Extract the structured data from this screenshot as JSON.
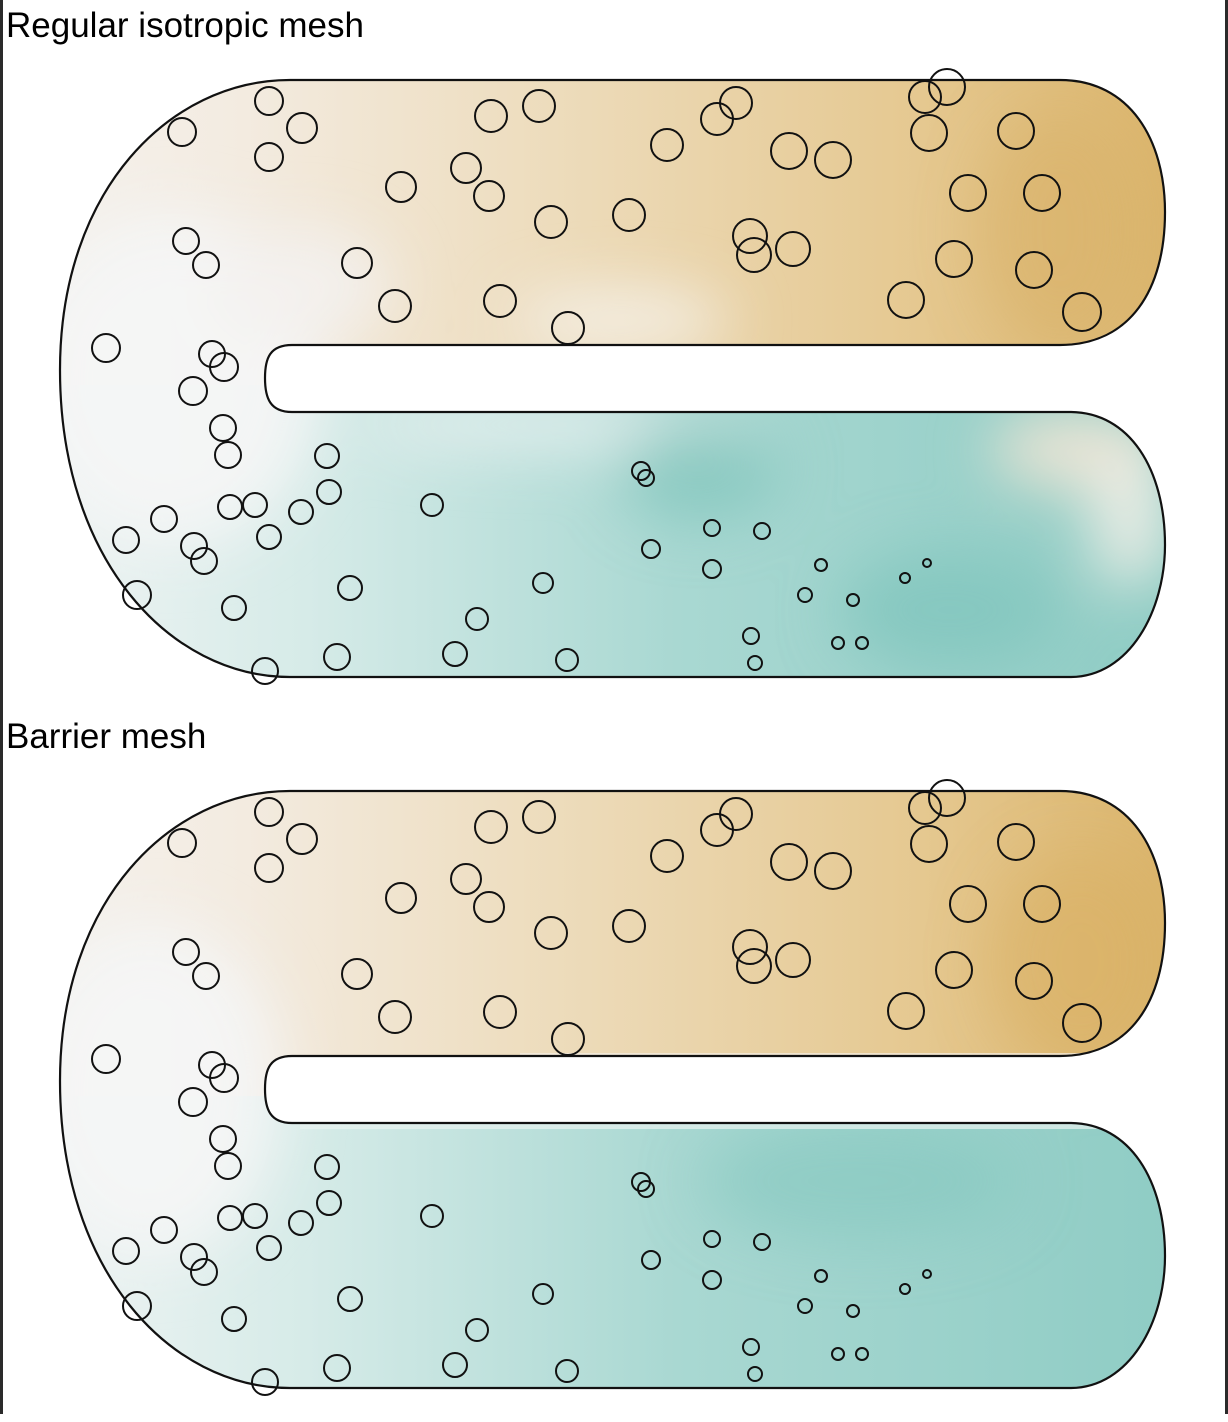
{
  "panels": [
    {
      "title": "Regular isotropic mesh",
      "field_style": "smooth"
    },
    {
      "title": "Barrier mesh",
      "field_style": "barrier"
    }
  ],
  "colors": {
    "high": "#d8b063",
    "mid": "#f5f5f5",
    "low": "#8ccbc3",
    "outline": "#111111",
    "frame": "#2a2a2a"
  },
  "marker_icon": "circle-outline"
}
